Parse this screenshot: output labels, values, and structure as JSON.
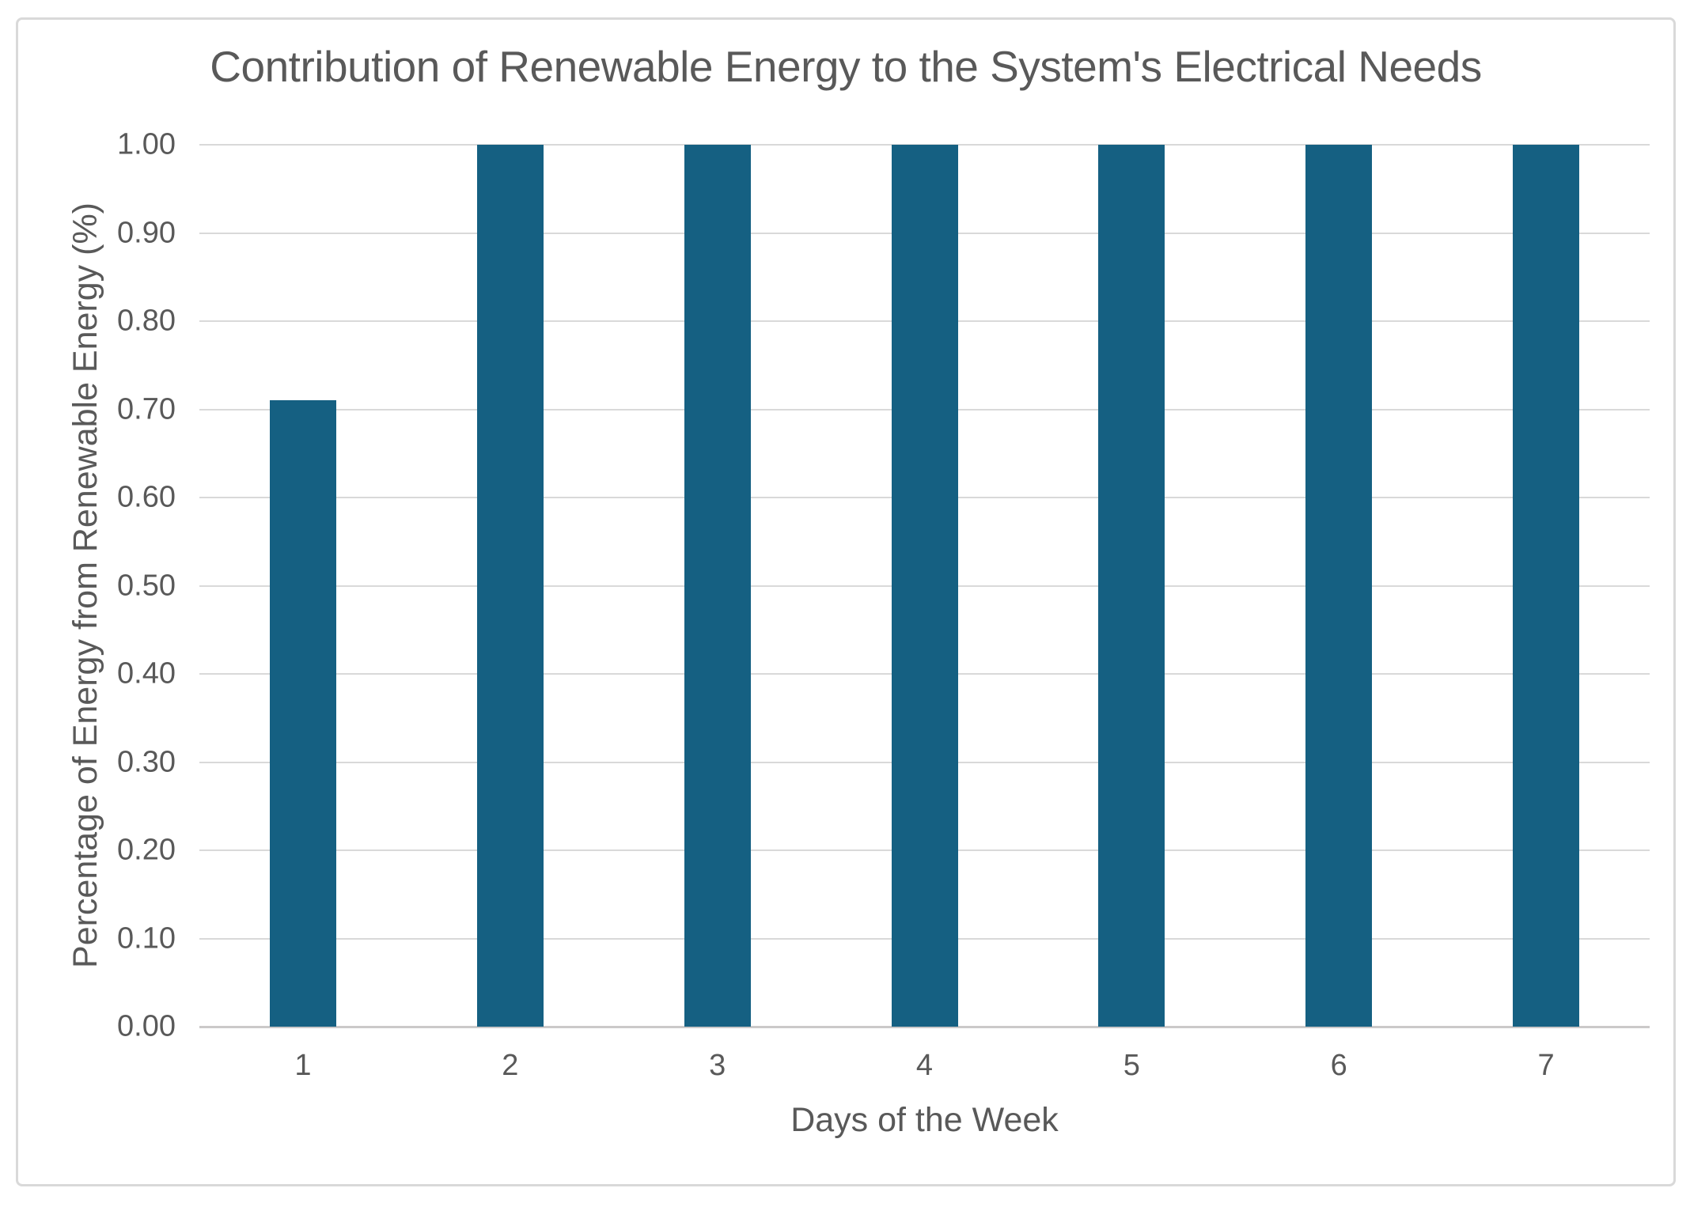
{
  "chart_data": {
    "type": "bar",
    "title": "Contribution of Renewable Energy to the System's Electrical Needs",
    "categories": [
      "1",
      "2",
      "3",
      "4",
      "5",
      "6",
      "7"
    ],
    "values": [
      0.71,
      1.0,
      1.0,
      1.0,
      1.0,
      1.0,
      1.0
    ],
    "xlabel": "Days of the Week",
    "ylabel": "Percentage of Energy from Renewable Energy (%)",
    "ylim": [
      0,
      1.0
    ],
    "ytick_step": 0.1,
    "ytick_labels": [
      "0.00",
      "0.10",
      "0.20",
      "0.30",
      "0.40",
      "0.50",
      "0.60",
      "0.70",
      "0.80",
      "0.90",
      "1.00"
    ],
    "grid": true,
    "legend_position": "none",
    "colors": {
      "bar": "#156082",
      "gridline": "#D9D9D9",
      "axis_line": "#CBC9C9",
      "text": "#595959",
      "frame_border": "#D9D9D9",
      "background": "#FFFFFF"
    }
  }
}
